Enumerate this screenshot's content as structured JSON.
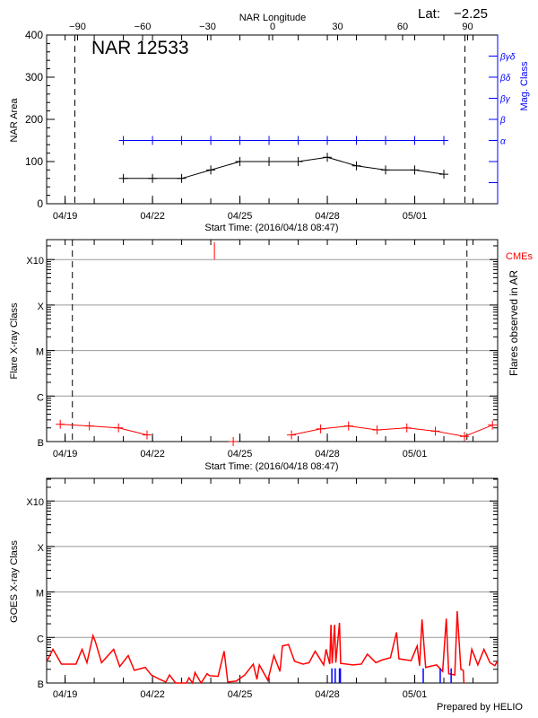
{
  "header": {
    "lat_label": "Lat:",
    "lat_value": "−2.25"
  },
  "footer": {
    "credit": "Prepared by HELIO"
  },
  "chart_data": [
    {
      "type": "line",
      "title": "NAR 12533",
      "ylabel": "NAR Area",
      "xlabel": "Start Time: (2016/04/18 08:47)",
      "x_range": [
        "04/18 08:47",
        "05/03 20:20"
      ],
      "x_tick_labels": [
        "04/19",
        "04/22",
        "04/25",
        "04/28",
        "05/01"
      ],
      "ylim": [
        0,
        400
      ],
      "y_ticks": [
        0,
        100,
        200,
        300,
        400
      ],
      "top_axis": {
        "label": "NAR Longitude",
        "ticks": [
          -90,
          -60,
          -30,
          0,
          30,
          60,
          90
        ],
        "dashed_limits": [
          -90,
          90
        ]
      },
      "right_axis": {
        "label": "Mag. Class",
        "color": "#0000ff",
        "classes": [
          {
            "label": "α",
            "at": 150
          },
          {
            "label": "β",
            "at": 200
          },
          {
            "label": "βγ",
            "at": 250
          },
          {
            "label": "βδ",
            "at": 300
          },
          {
            "label": "βγδ",
            "at": 350
          }
        ],
        "extra_ticks": [
          50,
          100
        ]
      },
      "x": [
        "04/21 00:00",
        "04/22 00:00",
        "04/23 00:00",
        "04/24 00:00",
        "04/25 00:00",
        "04/26 00:00",
        "04/27 00:00",
        "04/28 00:00",
        "04/29 00:00",
        "04/30 00:00",
        "05/01 00:00",
        "05/02 00:00"
      ],
      "series": [
        {
          "key": "area",
          "color": "#000000",
          "values": [
            60,
            60,
            60,
            80,
            100,
            100,
            100,
            110,
            90,
            80,
            80,
            70
          ]
        },
        {
          "key": "mag_class",
          "color": "#0000ff",
          "values": [
            "α",
            "α",
            "α",
            "α",
            "α",
            "α",
            "α",
            "α",
            "α",
            "α",
            "α",
            "α"
          ]
        }
      ]
    },
    {
      "type": "line",
      "ylabel": "Flare X-ray Class",
      "right_label": "Flares observed in AR",
      "xlabel": "Start Time: (2016/04/18 08:47)",
      "x_range": [
        "04/18 08:47",
        "05/03 20:20"
      ],
      "x_tick_labels": [
        "04/19",
        "04/22",
        "04/25",
        "04/28",
        "05/01"
      ],
      "y_scale": "log",
      "y_classes": [
        {
          "label": "B",
          "flux": 1e-07
        },
        {
          "label": "C",
          "flux": 1e-06
        },
        {
          "label": "M",
          "flux": 1e-05
        },
        {
          "label": "X",
          "flux": 0.0001
        },
        {
          "label": "X10",
          "flux": 0.001
        }
      ],
      "grid": true,
      "dashed_limits": [
        "04/19 06:00",
        "05/02 19:00"
      ],
      "cme_label": "CMEs",
      "cme_color": "#ff0000",
      "cmes": [
        "04/24 03:00"
      ],
      "flare_segments": [
        [
          [
            "04/18 20:00",
            2.4e-07
          ],
          [
            "04/19 20:00",
            2.2e-07
          ],
          [
            "04/20 20:00",
            2e-07
          ],
          [
            "04/21 19:30",
            1.4e-07
          ]
        ],
        [
          [
            "04/24 18:30",
            1e-07
          ]
        ],
        [
          [
            "04/26 18:30",
            1.4e-07
          ],
          [
            "04/27 18:30",
            1.9e-07
          ],
          [
            "04/28 17:30",
            2.2e-07
          ],
          [
            "04/29 17:00",
            1.8e-07
          ],
          [
            "04/30 17:30",
            2e-07
          ],
          [
            "05/01 17:00",
            1.7e-07
          ],
          [
            "05/02 17:00",
            1.3e-07
          ],
          [
            "05/03 16:00",
            2.3e-07
          ]
        ]
      ],
      "color": "#ff0000"
    },
    {
      "type": "line",
      "ylabel": "GOES X-ray Class",
      "x_range": [
        "04/18 08:47",
        "05/03 20:20"
      ],
      "x_tick_labels": [
        "04/19",
        "04/22",
        "04/25",
        "04/28",
        "05/01"
      ],
      "y_scale": "log",
      "y_classes": [
        {
          "label": "B",
          "flux": 1e-07
        },
        {
          "label": "C",
          "flux": 1e-06
        },
        {
          "label": "M",
          "flux": 1e-05
        },
        {
          "label": "X",
          "flux": 0.0001
        },
        {
          "label": "X10",
          "flux": 0.001
        }
      ],
      "grid": true,
      "color": "#ff0000",
      "segments": [
        [
          [
            "04/18 09:00",
            3e-07
          ],
          [
            "04/18 14:00",
            5.5e-07
          ],
          [
            "04/18 21:00",
            2.6e-07
          ],
          [
            "04/19 09:00",
            2.6e-07
          ],
          [
            "04/19 14:00",
            5.5e-07
          ],
          [
            "04/19 18:00",
            2.8e-07
          ],
          [
            "04/19 23:00",
            1.1e-06
          ],
          [
            "04/20 01:00",
            8e-07
          ],
          [
            "04/20 06:00",
            2.8e-07
          ],
          [
            "04/20 16:00",
            5.5e-07
          ],
          [
            "04/20 21:00",
            2.3e-07
          ],
          [
            "04/21 04:00",
            4e-07
          ],
          [
            "04/21 09:00",
            1.9e-07
          ],
          [
            "04/21 18:00",
            2.2e-07
          ],
          [
            "04/21 23:00",
            1.5e-07
          ],
          [
            "04/22 06:00",
            1.2e-07
          ],
          [
            "04/22 11:00",
            1.05e-07
          ],
          [
            "04/22 14:00",
            1.5e-07
          ],
          [
            "04/22 19:00",
            1e-07
          ],
          [
            "04/23 04:00",
            9e-08
          ],
          [
            "04/23 06:00",
            1.3e-07
          ],
          [
            "04/23 09:00",
            9e-08
          ],
          [
            "04/23 11:00",
            1.7e-07
          ],
          [
            "04/23 16:00",
            9.5e-08
          ],
          [
            "04/23 21:00",
            1.6e-07
          ],
          [
            "04/23 23:00",
            1.45e-07
          ],
          [
            "04/24 06:00",
            1.4e-07
          ],
          [
            "04/24 11:00",
            5e-07
          ],
          [
            "04/24 14:00",
            1.05e-07
          ],
          [
            "04/24 21:00",
            1.1e-07
          ],
          [
            "04/25 04:00",
            1.5e-07
          ],
          [
            "04/25 11:00",
            2.6e-07
          ],
          [
            "04/25 14:00",
            1.2e-07
          ],
          [
            "04/25 16:00",
            2.5e-07
          ],
          [
            "04/25 23:00",
            1.15e-07
          ],
          [
            "04/26 04:00",
            4e-07
          ],
          [
            "04/26 09:00",
            1.8e-07
          ],
          [
            "04/26 11:00",
            6.5e-07
          ],
          [
            "04/26 16:00",
            7e-07
          ],
          [
            "04/26 21:00",
            3e-07
          ],
          [
            "04/27 04:00",
            2.6e-07
          ],
          [
            "04/27 09:00",
            2.8e-07
          ],
          [
            "04/27 14:00",
            5e-07
          ],
          [
            "04/27 21:00",
            2.5e-07
          ],
          [
            "04/27 23:00",
            5.5e-07
          ],
          [
            "04/28 02:00",
            2.6e-07
          ],
          [
            "04/28 03:00",
            1.9e-06
          ],
          [
            "04/28 04:00",
            2.7e-07
          ],
          [
            "04/28 06:00",
            1.9e-06
          ],
          [
            "04/28 07:00",
            2.8e-07
          ],
          [
            "04/28 10:00",
            2.1e-06
          ],
          [
            "04/28 11:00",
            2.7e-07
          ],
          [
            "04/28 21:00",
            2.5e-07
          ],
          [
            "04/29 04:00",
            2.6e-07
          ],
          [
            "04/29 09:00",
            4.3e-07
          ],
          [
            "04/29 16:00",
            2.8e-07
          ],
          [
            "04/29 21:00",
            3.2e-07
          ],
          [
            "04/30 04:00",
            3.6e-07
          ],
          [
            "04/30 09:00",
            1.3e-06
          ],
          [
            "04/30 11:00",
            3.4e-07
          ],
          [
            "04/30 21:00",
            3.1e-07
          ],
          [
            "05/01 02:00",
            6.5e-07
          ],
          [
            "05/01 04:00",
            2.4e-07
          ],
          [
            "05/01 06:00",
            2.5e-06
          ],
          [
            "05/01 09:00",
            2.2e-07
          ],
          [
            "05/01 18:00",
            2.5e-07
          ],
          [
            "05/01 23:00",
            1.8e-07
          ],
          [
            "05/02 02:00",
            2.6e-06
          ],
          [
            "05/02 04:00",
            1.6e-07
          ],
          [
            "05/02 09:00",
            1.5e-07
          ],
          [
            "05/02 11:00",
            3.8e-06
          ],
          [
            "05/02 14:00",
            2e-07
          ],
          [
            "05/02 16:00",
            1.9e-07
          ],
          [
            "05/02 16:30",
            5e-08
          ]
        ],
        [
          [
            "05/02 21:00",
            2.4e-07
          ],
          [
            "05/02 23:00",
            5.5e-07
          ],
          [
            "05/03 04:00",
            2.5e-07
          ],
          [
            "05/03 09:00",
            5.5e-07
          ],
          [
            "05/03 14:00",
            2.8e-07
          ],
          [
            "05/03 18:00",
            2.4e-07
          ],
          [
            "05/03 20:00",
            3e-07
          ]
        ]
      ],
      "flare_markers": {
        "color": "#0000ff",
        "times": [
          "04/28 03:45",
          "04/28 06:30",
          "04/28 10:00",
          "04/28 10:45",
          "05/01 07:00",
          "05/01 21:00",
          "05/02 06:00"
        ],
        "flux": 2.1e-07
      }
    }
  ]
}
